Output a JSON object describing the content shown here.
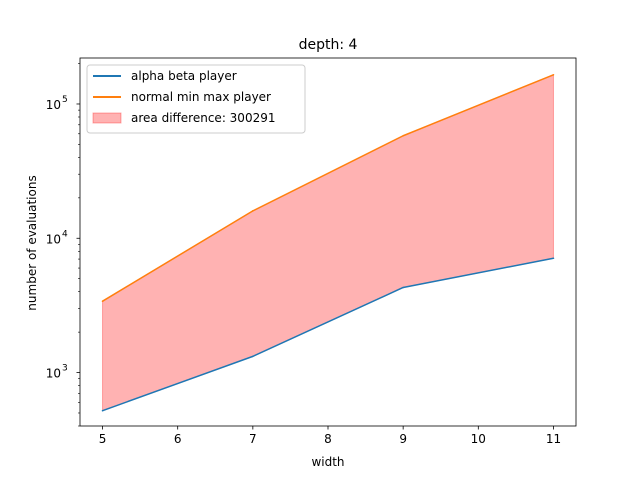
{
  "chart_data": {
    "type": "line",
    "title": "depth: 4",
    "xlabel": "width",
    "ylabel": "number of evaluations",
    "yscale": "log",
    "x": [
      5,
      7,
      9,
      11
    ],
    "xlim": [
      4.7,
      11.3
    ],
    "ylim": [
      400,
      220000
    ],
    "x_ticks": [
      5,
      6,
      7,
      8,
      9,
      10,
      11
    ],
    "y_ticks": [
      {
        "value": 1000,
        "base": "10",
        "exp": "3"
      },
      {
        "value": 10000,
        "base": "10",
        "exp": "4"
      },
      {
        "value": 100000,
        "base": "10",
        "exp": "5"
      }
    ],
    "series": [
      {
        "name": "alpha beta player",
        "values": [
          520,
          1320,
          4300,
          7100
        ],
        "color": "#1f77b4"
      },
      {
        "name": "normal min max player",
        "values": [
          3400,
          16000,
          58000,
          165000
        ],
        "color": "#ff7f0e"
      }
    ],
    "fill": {
      "label": "area difference: 300291",
      "color": "#ff0000",
      "opacity": 0.3
    },
    "legend_location": "upper-left",
    "grid": false
  }
}
